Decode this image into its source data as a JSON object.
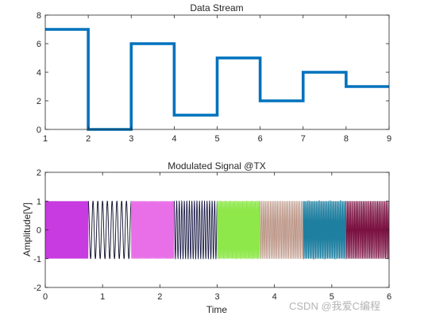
{
  "chart_data": [
    {
      "type": "line",
      "title": "Data Stream",
      "xlabel": "",
      "ylabel": "",
      "xlim": [
        1,
        9
      ],
      "ylim": [
        0,
        8
      ],
      "xticks": [
        "1",
        "2",
        "3",
        "4",
        "5",
        "6",
        "7",
        "8",
        "9"
      ],
      "yticks": [
        "0",
        "2",
        "4",
        "6",
        "8"
      ],
      "step": true,
      "x": [
        1,
        2,
        3,
        4,
        5,
        6,
        7,
        8,
        9
      ],
      "y": [
        7,
        0,
        6,
        1,
        5,
        2,
        4,
        3,
        3
      ],
      "color": "#0072BD",
      "grid": false
    },
    {
      "type": "line",
      "title": "Modulated Signal @TX",
      "xlabel": "Time",
      "ylabel": "Amplitude[V]",
      "xlim": [
        0,
        6
      ],
      "ylim": [
        -2,
        2
      ],
      "xticks": [
        "0",
        "1",
        "2",
        "3",
        "4",
        "5",
        "6"
      ],
      "yticks": [
        "-2",
        "-1",
        "0",
        "1",
        "2"
      ],
      "grid": false,
      "segments": [
        {
          "start": 0.0,
          "end": 0.75,
          "symbol": 7,
          "cycles": 60,
          "color": "#c83be0"
        },
        {
          "start": 0.75,
          "end": 1.5,
          "symbol": 0,
          "cycles": 9,
          "color": "#0a0a28"
        },
        {
          "start": 1.5,
          "end": 2.25,
          "symbol": 6,
          "cycles": 52,
          "color": "#e86fe8"
        },
        {
          "start": 2.25,
          "end": 3.0,
          "symbol": 1,
          "cycles": 17,
          "color": "#1a1a46"
        },
        {
          "start": 3.0,
          "end": 3.75,
          "symbol": 5,
          "cycles": 44,
          "color": "#8ee84a"
        },
        {
          "start": 3.75,
          "end": 4.5,
          "symbol": 2,
          "cycles": 25,
          "color": "#b89080"
        },
        {
          "start": 4.5,
          "end": 5.25,
          "symbol": 4,
          "cycles": 36,
          "color": "#1f7fa0"
        },
        {
          "start": 5.25,
          "end": 6.0,
          "symbol": 3,
          "cycles": 30,
          "color": "#7a1040"
        }
      ],
      "amplitude": 1
    }
  ],
  "watermark": "CSDN @我爱C编程"
}
